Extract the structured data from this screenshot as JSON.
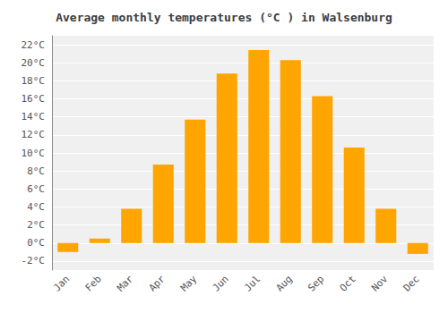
{
  "chart_data": {
    "type": "bar",
    "title": "Average monthly temperatures (°C ) in Walsenburg",
    "categories": [
      "Jan",
      "Feb",
      "Mar",
      "Apr",
      "May",
      "Jun",
      "Jul",
      "Aug",
      "Sep",
      "Oct",
      "Nov",
      "Dec"
    ],
    "values": [
      -1.0,
      0.5,
      3.8,
      8.7,
      13.7,
      18.8,
      21.4,
      20.3,
      16.3,
      10.6,
      3.8,
      -1.2
    ],
    "color": "#FFA500",
    "ylim": [
      -3,
      23
    ],
    "yticks": [
      {
        "value": -2,
        "label": "-2°C"
      },
      {
        "value": 0,
        "label": "0°C"
      },
      {
        "value": 2,
        "label": "2°C"
      },
      {
        "value": 4,
        "label": "4°C"
      },
      {
        "value": 6,
        "label": "6°C"
      },
      {
        "value": 8,
        "label": "8°C"
      },
      {
        "value": 10,
        "label": "10°C"
      },
      {
        "value": 12,
        "label": "12°C"
      },
      {
        "value": 14,
        "label": "14°C"
      },
      {
        "value": 16,
        "label": "16°C"
      },
      {
        "value": 18,
        "label": "18°C"
      },
      {
        "value": 20,
        "label": "20°C"
      },
      {
        "value": 22,
        "label": "22°C"
      }
    ],
    "grid": true
  }
}
